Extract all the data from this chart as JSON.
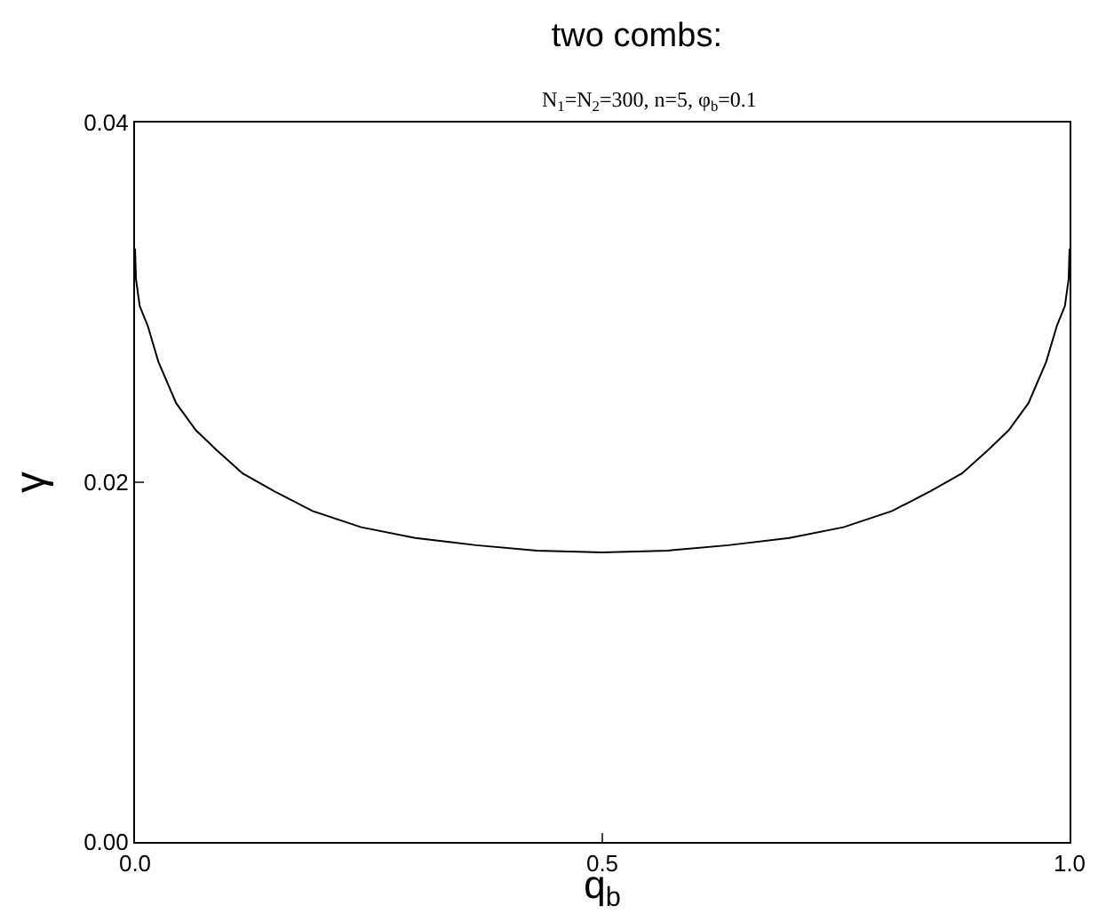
{
  "chart_data": {
    "type": "line",
    "title": "two combs:",
    "subtitle": "N$_{1}$=N$_{2}$=300, n=5, φ$_{b}$=0.1",
    "xlabel": "q$_{b}$",
    "ylabel": "γ",
    "x": [
      0,
      0.001,
      0.005,
      0.0136,
      0.025,
      0.044,
      0.065,
      0.087,
      0.115,
      0.149,
      0.19,
      0.242,
      0.3,
      0.365,
      0.43,
      0.5,
      0.57,
      0.635,
      0.7,
      0.758,
      0.81,
      0.851,
      0.885,
      0.913,
      0.935,
      0.956,
      0.975,
      0.9864,
      0.995,
      0.999,
      1
    ],
    "series": [
      {
        "color": "#000000",
        "values": [
          0.033,
          0.0313,
          0.0298,
          0.0287,
          0.0267,
          0.0244,
          0.0229,
          0.0218,
          0.0205,
          0.0195,
          0.0184,
          0.0175,
          0.0169,
          0.0165,
          0.0162,
          0.0161,
          0.0162,
          0.0165,
          0.0169,
          0.0175,
          0.0184,
          0.0195,
          0.0205,
          0.0218,
          0.0229,
          0.0244,
          0.0267,
          0.0287,
          0.0298,
          0.0313,
          0.033
        ]
      }
    ],
    "xlim": [
      0,
      1
    ],
    "ylim": [
      0,
      0.04
    ],
    "xticks": [
      {
        "value": 0,
        "label": "0.0"
      },
      0.5,
      {
        "value": 1,
        "label": "1.0"
      }
    ],
    "yticks": [
      {
        "value": 0,
        "label": "0.00"
      },
      0.02,
      0.04
    ],
    "grid": false,
    "marker": "none",
    "line_style": "solid"
  }
}
